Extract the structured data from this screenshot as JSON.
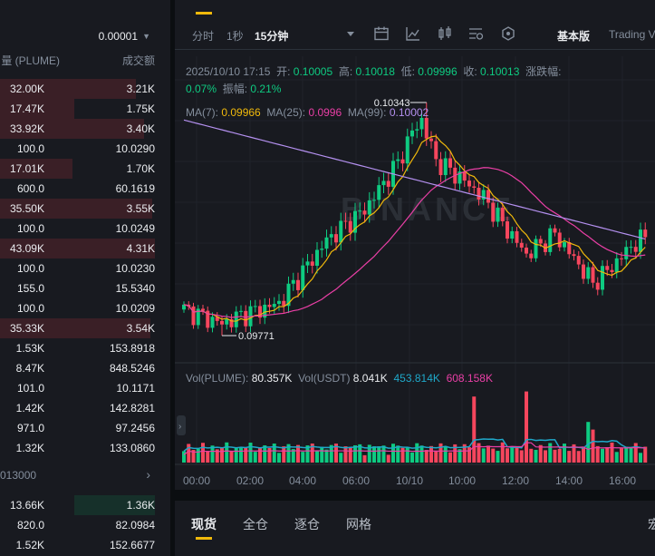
{
  "orderbook": {
    "precision": "0.00001",
    "col_qty": "量 (PLUME)",
    "col_total": "成交额",
    "rows": [
      {
        "qty": "32.00K",
        "total": "3.21K",
        "depth": 0.88,
        "side": "sell"
      },
      {
        "qty": "17.47K",
        "total": "1.75K",
        "depth": 0.48,
        "side": "sell"
      },
      {
        "qty": "33.92K",
        "total": "3.40K",
        "depth": 0.93,
        "side": "sell"
      },
      {
        "qty": "100.0",
        "total": "10.0290",
        "depth": 0.0,
        "side": "sell"
      },
      {
        "qty": "17.01K",
        "total": "1.70K",
        "depth": 0.47,
        "side": "sell"
      },
      {
        "qty": "600.0",
        "total": "60.1619",
        "depth": 0.0,
        "side": "sell"
      },
      {
        "qty": "35.50K",
        "total": "3.55K",
        "depth": 0.98,
        "side": "sell"
      },
      {
        "qty": "100.0",
        "total": "10.0249",
        "depth": 0.0,
        "side": "sell"
      },
      {
        "qty": "43.09K",
        "total": "4.31K",
        "depth": 1.0,
        "side": "sell"
      },
      {
        "qty": "100.0",
        "total": "10.0230",
        "depth": 0.0,
        "side": "sell"
      },
      {
        "qty": "155.0",
        "total": "15.5340",
        "depth": 0.0,
        "side": "sell"
      },
      {
        "qty": "100.0",
        "total": "10.0209",
        "depth": 0.0,
        "side": "sell"
      },
      {
        "qty": "35.33K",
        "total": "3.54K",
        "depth": 0.97,
        "side": "sell"
      },
      {
        "qty": "1.53K",
        "total": "153.8918",
        "depth": 0.0,
        "side": "sell"
      },
      {
        "qty": "8.47K",
        "total": "848.5246",
        "depth": 0.0,
        "side": "sell"
      },
      {
        "qty": "101.0",
        "total": "10.1171",
        "depth": 0.0,
        "side": "sell"
      },
      {
        "qty": "1.42K",
        "total": "142.8281",
        "depth": 0.0,
        "side": "sell"
      },
      {
        "qty": "971.0",
        "total": "97.2456",
        "depth": 0.0,
        "side": "sell"
      },
      {
        "qty": "1.32K",
        "total": "133.0860",
        "depth": 0.0,
        "side": "sell"
      }
    ],
    "mid_price": "013000",
    "buy_rows": [
      {
        "qty": "13.66K",
        "total": "1.36K",
        "depth": 0.52,
        "side": "buy"
      },
      {
        "qty": "820.0",
        "total": "82.0984",
        "depth": 0.0,
        "side": "buy"
      },
      {
        "qty": "1.52K",
        "total": "152.6677",
        "depth": 0.0,
        "side": "buy"
      }
    ]
  },
  "toolbar": {
    "time_label": "分时",
    "interval_1s": "1秒",
    "interval_15m": "15分钟",
    "basic_label": "基本版",
    "tv_label": "Trading V",
    "icons": [
      "calendar-icon",
      "line-chart-icon",
      "candle-settings-icon",
      "indicator-icon",
      "hexagon-icon"
    ]
  },
  "ohlc": {
    "date": "2025/10/10 17:15",
    "open_label": "开:",
    "open": "0.10005",
    "high_label": "高:",
    "high": "0.10018",
    "low_label": "低:",
    "low": "0.09996",
    "close_label": "收:",
    "close": "0.10013",
    "change_label": "涨跌幅:",
    "change": "0.07%",
    "amp_label": "振幅:",
    "amp": "0.21%"
  },
  "ma": {
    "ma7_label": "MA(7):",
    "ma7": "0.09966",
    "ma25_label": "MA(25):",
    "ma25": "0.0996",
    "ma99_label": "MA(99):",
    "ma99": "0.10002"
  },
  "volume": {
    "vol_label": "Vol(PLUME):",
    "vol": "80.357K",
    "usdt_label": "Vol(USDT)",
    "usdt": "8.041K",
    "ma_a": "453.814K",
    "ma_b": "608.158K"
  },
  "chart_data": {
    "type": "candlestick",
    "high_mark": "0.10343",
    "low_mark": "0.09771",
    "watermark": "BINANCE",
    "x_ticks": [
      "00:00",
      "02:00",
      "04:00",
      "06:00",
      "10/10",
      "10:00",
      "12:00",
      "14:00",
      "16:00"
    ],
    "colors": {
      "up": "#0ecb81",
      "down": "#f6465d",
      "ma7": "#f0b90b",
      "ma25": "#ea3fa6",
      "ma99": "#b490ef",
      "vol_ma": "#1fa8c9"
    }
  },
  "bottom_tabs": [
    "现货",
    "全仓",
    "逐仓",
    "网格"
  ],
  "bottom_right_glyph": "宏"
}
